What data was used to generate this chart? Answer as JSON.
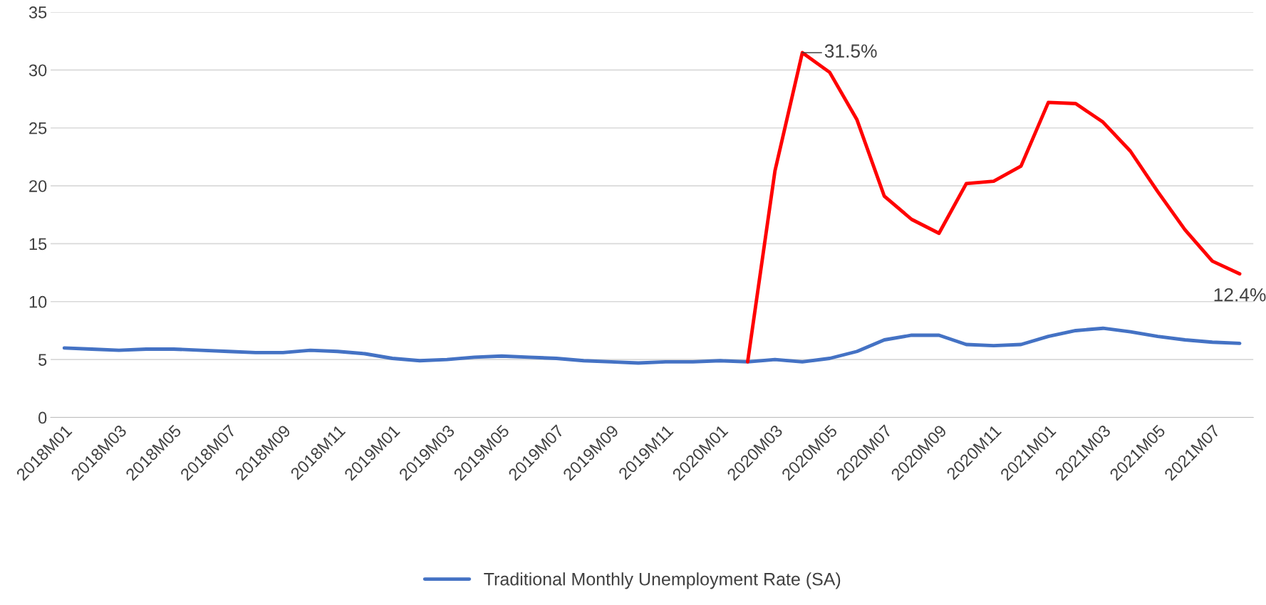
{
  "chart_data": {
    "type": "line",
    "categories": [
      "2018M01",
      null,
      "2018M03",
      null,
      "2018M05",
      null,
      "2018M07",
      null,
      "2018M09",
      null,
      "2018M11",
      null,
      "2019M01",
      null,
      "2019M03",
      null,
      "2019M05",
      null,
      "2019M07",
      null,
      "2019M09",
      null,
      "2019M11",
      null,
      "2020M01",
      null,
      "2020M03",
      null,
      "2020M05",
      null,
      "2020M07",
      null,
      "2020M09",
      null,
      "2020M11",
      null,
      "2021M01",
      null,
      "2021M03",
      null,
      "2021M05",
      null,
      "2021M07",
      null
    ],
    "series": [
      {
        "name": "Traditional Monthly Unemployment Rate (SA)",
        "color": "#4472c4",
        "values": [
          6.0,
          5.9,
          5.8,
          5.9,
          5.9,
          5.8,
          5.7,
          5.6,
          5.6,
          5.8,
          5.7,
          5.5,
          5.1,
          4.9,
          5.0,
          5.2,
          5.3,
          5.2,
          5.1,
          4.9,
          4.8,
          4.7,
          4.8,
          4.8,
          4.9,
          4.8,
          5.0,
          4.8,
          5.1,
          5.7,
          6.7,
          7.1,
          7.1,
          6.3,
          6.2,
          6.3,
          7.0,
          7.5,
          7.7,
          7.4,
          7.0,
          6.7,
          6.5,
          6.4
        ]
      },
      {
        "color": "#ff0000",
        "values": [
          null,
          null,
          null,
          null,
          null,
          null,
          null,
          null,
          null,
          null,
          null,
          null,
          null,
          null,
          null,
          null,
          null,
          null,
          null,
          null,
          null,
          null,
          null,
          null,
          null,
          4.8,
          21.3,
          31.5,
          29.8,
          25.7,
          19.1,
          17.1,
          15.9,
          20.2,
          20.4,
          21.7,
          27.2,
          27.1,
          25.5,
          23.0,
          19.5,
          16.2,
          13.5,
          12.4
        ]
      }
    ],
    "annotations": [
      "31.5%",
      "12.4%"
    ],
    "ylim": [
      0,
      35
    ],
    "yticks": [
      0,
      5,
      10,
      15,
      20,
      25,
      30,
      35
    ],
    "grid": "y",
    "legend": "bottom",
    "marker": "none",
    "line_style": "solid"
  }
}
